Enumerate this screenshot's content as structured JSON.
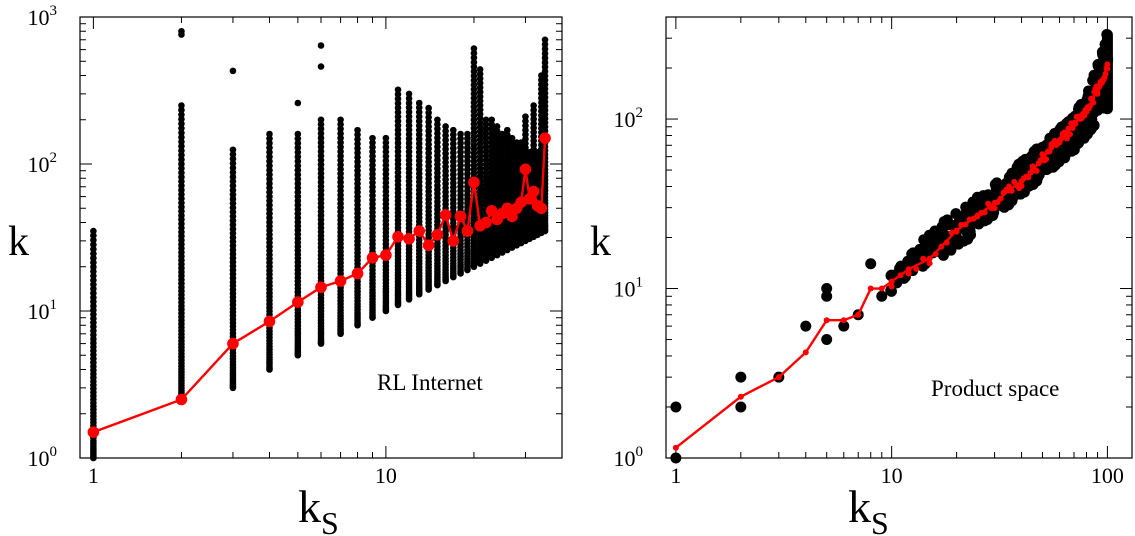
{
  "chart_data": [
    {
      "type": "scatter",
      "xscale": "log",
      "yscale": "log",
      "xlim": [
        0.9,
        40
      ],
      "ylim": [
        1,
        1000
      ],
      "xlabel": "k",
      "xlabel_sub": "S",
      "ylabel": "k",
      "annotation": "RL Internet",
      "x_ticks": [
        {
          "v": 1,
          "label": "1"
        },
        {
          "v": 10,
          "label": "10"
        }
      ],
      "y_ticks": [
        {
          "v": 1,
          "base": "10",
          "exp": "0"
        },
        {
          "v": 10,
          "base": "10",
          "exp": "1"
        },
        {
          "v": 100,
          "base": "10",
          "exp": "2"
        },
        {
          "v": 1000,
          "base": "10",
          "exp": "3"
        }
      ],
      "colors": {
        "points": "#000000",
        "average": "#ff0000"
      },
      "series": [
        {
          "kind": "scatter",
          "columns": [
            {
              "x": 1,
              "ymin": 1,
              "ymax": 35
            },
            {
              "x": 2,
              "ymin": 2.5,
              "ymax": 250,
              "outliers": [
                760,
                800
              ]
            },
            {
              "x": 3,
              "ymin": 3,
              "ymax": 125,
              "outliers": [
                430
              ]
            },
            {
              "x": 4,
              "ymin": 4,
              "ymax": 160
            },
            {
              "x": 5,
              "ymin": 5,
              "ymax": 160,
              "outliers": [
                260
              ]
            },
            {
              "x": 6,
              "ymin": 6,
              "ymax": 200,
              "outliers": [
                460,
                640
              ]
            },
            {
              "x": 7,
              "ymin": 7,
              "ymax": 200
            },
            {
              "x": 8,
              "ymin": 8,
              "ymax": 170
            },
            {
              "x": 9,
              "ymin": 9,
              "ymax": 150
            },
            {
              "x": 10,
              "ymin": 10,
              "ymax": 150
            },
            {
              "x": 11,
              "ymin": 11,
              "ymax": 320
            },
            {
              "x": 12,
              "ymin": 12,
              "ymax": 300
            },
            {
              "x": 13,
              "ymin": 13,
              "ymax": 260
            },
            {
              "x": 14,
              "ymin": 14,
              "ymax": 240
            },
            {
              "x": 15,
              "ymin": 15,
              "ymax": 200
            },
            {
              "x": 16,
              "ymin": 16,
              "ymax": 180
            },
            {
              "x": 17,
              "ymin": 17,
              "ymax": 170
            },
            {
              "x": 18,
              "ymin": 18,
              "ymax": 160
            },
            {
              "x": 19,
              "ymin": 19,
              "ymax": 160
            },
            {
              "x": 20,
              "ymin": 20,
              "ymax": 610
            },
            {
              "x": 21,
              "ymin": 21,
              "ymax": 440
            },
            {
              "x": 22,
              "ymin": 22,
              "ymax": 200
            },
            {
              "x": 23,
              "ymin": 23,
              "ymax": 200
            },
            {
              "x": 24,
              "ymin": 24,
              "ymax": 180
            },
            {
              "x": 25,
              "ymin": 25,
              "ymax": 160
            },
            {
              "x": 26,
              "ymin": 26,
              "ymax": 170
            },
            {
              "x": 27,
              "ymin": 27,
              "ymax": 150
            },
            {
              "x": 28,
              "ymin": 28,
              "ymax": 140
            },
            {
              "x": 29,
              "ymin": 29,
              "ymax": 140
            },
            {
              "x": 30,
              "ymin": 30,
              "ymax": 210
            },
            {
              "x": 31,
              "ymin": 31,
              "ymax": 120
            },
            {
              "x": 32,
              "ymin": 32,
              "ymax": 250
            },
            {
              "x": 33,
              "ymin": 33,
              "ymax": 120
            },
            {
              "x": 34,
              "ymin": 34,
              "ymax": 400
            },
            {
              "x": 35,
              "ymin": 35,
              "ymax": 700
            }
          ]
        },
        {
          "kind": "line",
          "x": [
            1,
            2,
            3,
            4,
            5,
            6,
            7,
            8,
            9,
            10,
            11,
            12,
            13,
            14,
            15,
            16,
            17,
            18,
            19,
            20,
            21,
            22,
            23,
            24,
            25,
            26,
            27,
            28,
            29,
            30,
            31,
            32,
            33,
            34,
            35
          ],
          "y": [
            1.5,
            2.5,
            6,
            8.5,
            11.5,
            14.5,
            16,
            18,
            23,
            24,
            32,
            31,
            35,
            28,
            33,
            45,
            30,
            44,
            35,
            75,
            38,
            40,
            48,
            42,
            46,
            50,
            44,
            50,
            55,
            92,
            58,
            65,
            52,
            50,
            150
          ]
        }
      ]
    },
    {
      "type": "scatter",
      "xscale": "log",
      "yscale": "log",
      "xlim": [
        0.9,
        130
      ],
      "ylim": [
        1,
        400
      ],
      "xlabel": "k",
      "xlabel_sub": "S",
      "ylabel": "k",
      "annotation": "Product space",
      "x_ticks": [
        {
          "v": 1,
          "label": "1"
        },
        {
          "v": 10,
          "label": "10"
        },
        {
          "v": 100,
          "label": "100"
        }
      ],
      "y_ticks": [
        {
          "v": 1,
          "base": "10",
          "exp": "0"
        },
        {
          "v": 10,
          "base": "10",
          "exp": "1"
        },
        {
          "v": 100,
          "base": "10",
          "exp": "2"
        }
      ],
      "colors": {
        "points": "#000000",
        "average": "#ff0000"
      },
      "series": [
        {
          "kind": "scatter",
          "points": [
            [
              1,
              1
            ],
            [
              1,
              2
            ],
            [
              2,
              2
            ],
            [
              2,
              3
            ],
            [
              3,
              3
            ],
            [
              4,
              6
            ],
            [
              5,
              5
            ],
            [
              5,
              9
            ],
            [
              5,
              10
            ],
            [
              6,
              6
            ],
            [
              7,
              7
            ],
            [
              8,
              14
            ],
            [
              9,
              9
            ],
            [
              10,
              12
            ]
          ],
          "band": [
            {
              "x": 10,
              "lo": 9.5,
              "hi": 12
            },
            {
              "x": 15,
              "lo": 14,
              "hi": 22
            },
            {
              "x": 20,
              "lo": 17,
              "hi": 28
            },
            {
              "x": 30,
              "lo": 27,
              "hi": 42
            },
            {
              "x": 40,
              "lo": 36,
              "hi": 56
            },
            {
              "x": 50,
              "lo": 46,
              "hi": 72
            },
            {
              "x": 60,
              "lo": 55,
              "hi": 88
            },
            {
              "x": 70,
              "lo": 65,
              "hi": 105
            },
            {
              "x": 80,
              "lo": 78,
              "hi": 140
            },
            {
              "x": 90,
              "lo": 100,
              "hi": 200
            },
            {
              "x": 100,
              "lo": 115,
              "hi": 320
            }
          ]
        },
        {
          "kind": "line",
          "x": [
            1,
            2,
            3,
            4,
            5,
            6,
            7,
            8,
            9,
            10,
            12,
            15,
            20,
            25,
            30,
            35,
            40,
            45,
            50,
            55,
            60,
            65,
            70,
            75,
            80,
            85,
            90,
            95,
            100
          ],
          "y": [
            1.15,
            2.3,
            3,
            4.2,
            6.5,
            6.5,
            7,
            10,
            10,
            11,
            13,
            15,
            22,
            27,
            32,
            38,
            43,
            50,
            58,
            68,
            75,
            82,
            95,
            100,
            110,
            130,
            150,
            170,
            210
          ]
        }
      ]
    }
  ]
}
